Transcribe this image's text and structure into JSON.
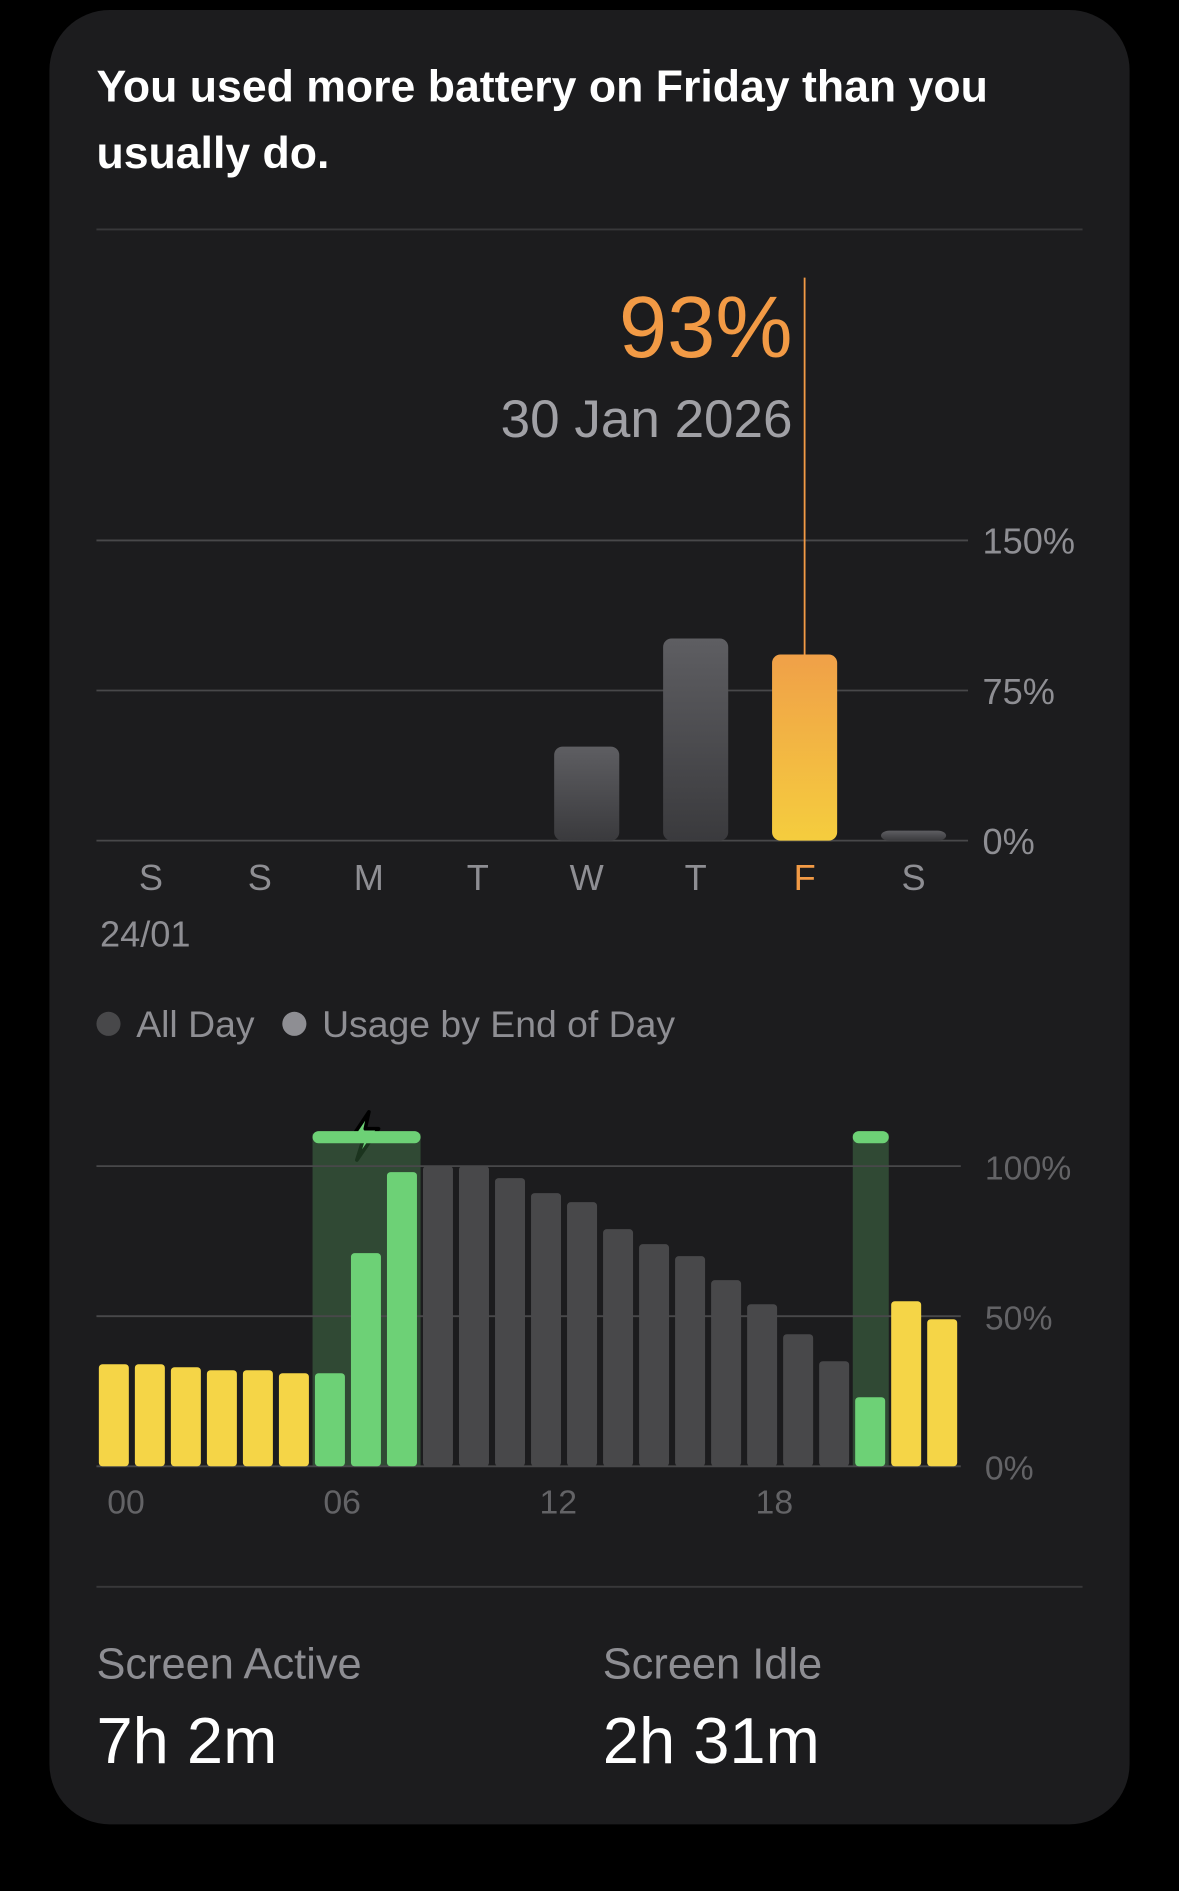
{
  "headline": "You used more battery on Friday than you usually do.",
  "chart_data": [
    {
      "type": "bar",
      "categories": [
        "S",
        "S",
        "M",
        "T",
        "W",
        "T",
        "F",
        "S"
      ],
      "first_date": "24/01",
      "values": [
        0,
        0,
        0,
        0,
        47,
        101,
        93,
        5
      ],
      "color": "#5a5a5e",
      "highlight_color": "#f29a45",
      "selected": {
        "index": 6,
        "value": 93,
        "label": "93%",
        "date": "30 Jan 2026"
      },
      "ylim": [
        0,
        150
      ],
      "yticks": [
        {
          "value": 0,
          "label": "0%"
        },
        {
          "value": 75,
          "label": "75%"
        },
        {
          "value": 150,
          "label": "150%"
        }
      ],
      "grid": true,
      "legend": [
        {
          "name": "All Day",
          "color": "#48484a"
        },
        {
          "name": "Usage by End of Day",
          "color": "#8e8e93"
        }
      ]
    },
    {
      "type": "bar",
      "x": [
        0,
        1,
        2,
        3,
        4,
        5,
        6,
        7,
        8,
        9,
        10,
        11,
        12,
        13,
        14,
        15,
        16,
        17,
        18,
        19,
        20,
        21,
        22,
        23
      ],
      "values": [
        34,
        34,
        33,
        32,
        32,
        31,
        31,
        71,
        98,
        100,
        100,
        96,
        91,
        88,
        79,
        74,
        70,
        62,
        54,
        44,
        35,
        23,
        55,
        49
      ],
      "colors": [
        "#f5d547",
        "#f5d547",
        "#f5d547",
        "#f5d547",
        "#f5d547",
        "#f5d547",
        "#6dd176",
        "#6dd176",
        "#6dd176",
        "#48484a",
        "#48484a",
        "#48484a",
        "#48484a",
        "#48484a",
        "#48484a",
        "#48484a",
        "#48484a",
        "#48484a",
        "#48484a",
        "#48484a",
        "#48484a",
        "#6dd176",
        "#f5d547",
        "#f5d547"
      ],
      "charging": [
        {
          "start": 6,
          "end": 9
        },
        {
          "start": 21,
          "end": 22
        }
      ],
      "charging_color": "#6dd176",
      "xlim": [
        0,
        24
      ],
      "xticks": [
        {
          "value": 0,
          "label": "00"
        },
        {
          "value": 6,
          "label": "06"
        },
        {
          "value": 12,
          "label": "12"
        },
        {
          "value": 18,
          "label": "18"
        }
      ],
      "ylim": [
        0,
        100
      ],
      "yticks": [
        {
          "value": 0,
          "label": "0%"
        },
        {
          "value": 50,
          "label": "50%"
        },
        {
          "value": 100,
          "label": "100%"
        }
      ],
      "grid": true
    }
  ],
  "stats": [
    {
      "label": "Screen Active",
      "value": "7h 2m"
    },
    {
      "label": "Screen Idle",
      "value": "2h 31m"
    }
  ]
}
